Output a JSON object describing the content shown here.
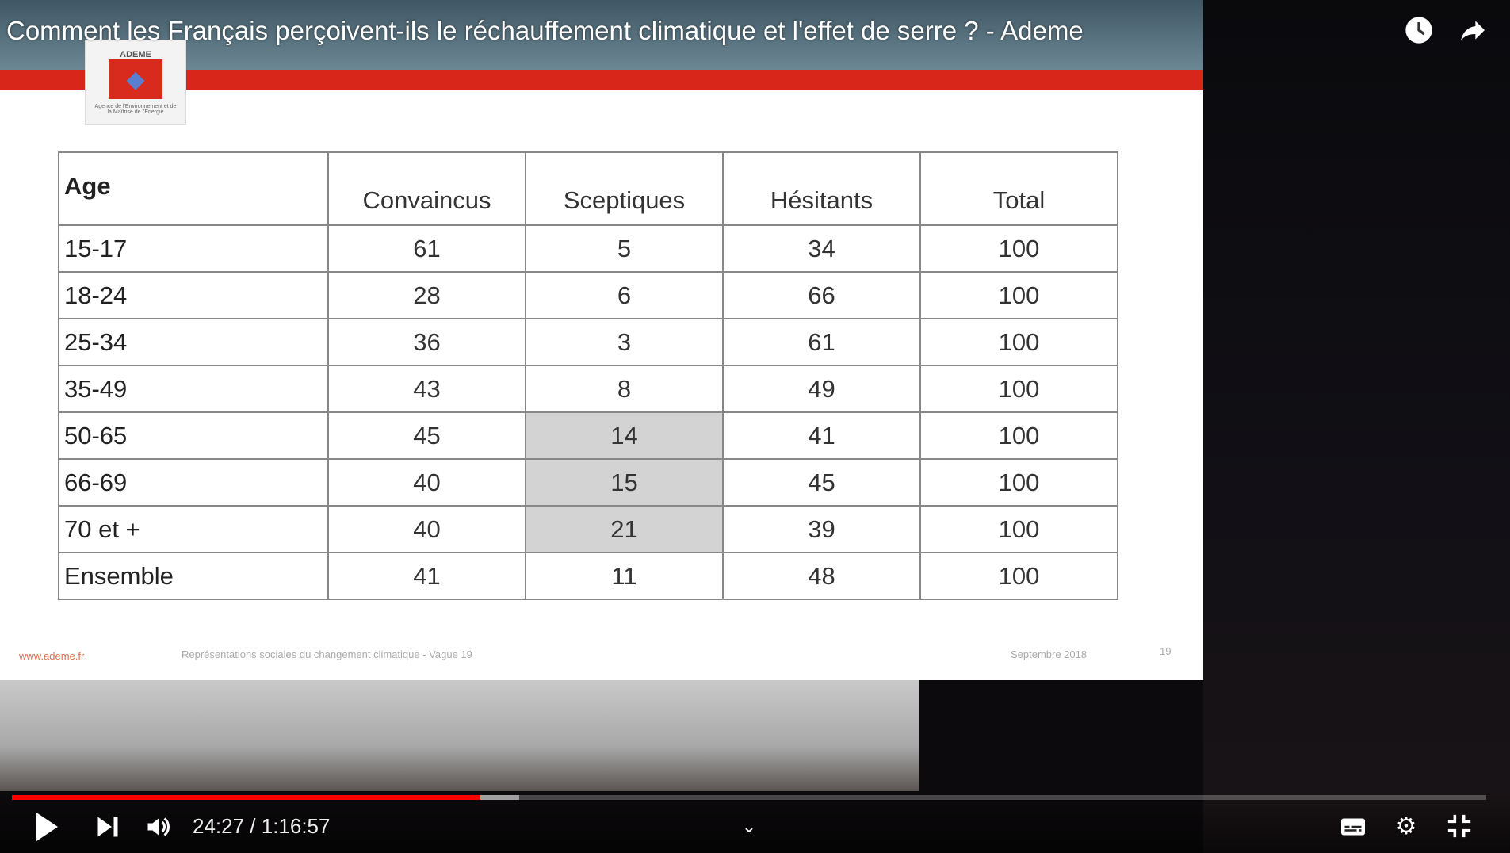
{
  "video": {
    "title": "Comment les Français perçoivent-ils le réchauffement climatique et l'effet de serre ? - Ademe",
    "time_current": "24:27",
    "time_total": "1:16:57",
    "time_display": "24:27 / 1:16:57",
    "progress_percent": 31.8,
    "buffered_percent": 34.4,
    "accent": "#ff0000"
  },
  "slide": {
    "logo_text": "ADEME",
    "logo_caption": "Agence de l'Environnement et de la Maîtrise de l'Energie",
    "table": {
      "headers": [
        "Age",
        "Convaincus",
        "Sceptiques",
        "Hésitants",
        "Total"
      ],
      "rows": [
        [
          "15-17",
          "61",
          "5",
          "34",
          "100"
        ],
        [
          "18-24",
          "28",
          "6",
          "66",
          "100"
        ],
        [
          "25-34",
          "36",
          "3",
          "61",
          "100"
        ],
        [
          "35-49",
          "43",
          "8",
          "49",
          "100"
        ],
        [
          "50-65",
          "45",
          "14",
          "41",
          "100"
        ],
        [
          "66-69",
          "40",
          "15",
          "45",
          "100"
        ],
        [
          "70 et +",
          "40",
          "21",
          "39",
          "100"
        ],
        [
          "Ensemble",
          "41",
          "11",
          "48",
          "100"
        ]
      ],
      "highlighted_rows": [
        4,
        5,
        6
      ],
      "highlighted_column": 2
    },
    "footer": {
      "url": "www.ademe.fr",
      "subtitle": "Représentations sociales du changement climatique - Vague 19",
      "date": "Septembre 2018",
      "page": "19"
    }
  },
  "icons": {
    "watch_later": "clock-icon",
    "share": "share-icon",
    "play": "play-icon",
    "next": "next-icon",
    "volume": "volume-icon",
    "chevron": "chevron-down-icon",
    "captions": "captions-icon",
    "settings": "gear-icon",
    "fullscreen_exit": "exit-fullscreen-icon"
  }
}
